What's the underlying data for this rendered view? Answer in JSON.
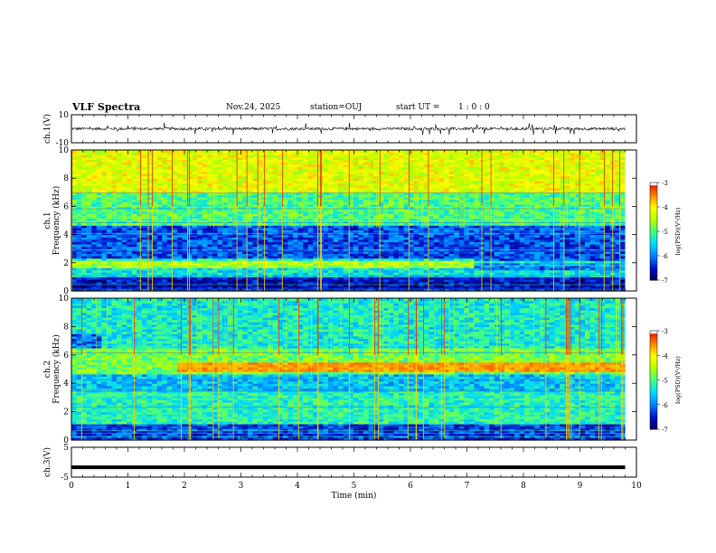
{
  "header": {
    "title": "VLF Spectra",
    "date": "Nov.24, 2025",
    "station": "station=OUJ",
    "start_label": "start  UT =",
    "start_time": "1 : 0 : 0"
  },
  "chart_data": [
    {
      "type": "line",
      "panel": "ch1-waveform",
      "ylabel": "ch.1(V)",
      "ylim": [
        -10,
        10
      ],
      "y_ticks": [
        "10",
        "-10"
      ],
      "series": [
        {
          "baseline": 0,
          "spread": 1.0,
          "spikes_up_to": 4.5
        }
      ],
      "color": "#000000"
    },
    {
      "type": "heatmap",
      "panel": "ch1-spectrogram",
      "ylabel": "ch.1",
      "ylabel2": "Frequency (kHz)",
      "ylim": [
        0,
        10
      ],
      "y_ticks": [
        "0",
        "2",
        "4",
        "6",
        "8",
        "10"
      ],
      "colorbar": {
        "label": "log(PSD)(V²/Hz)",
        "range": [
          -7,
          -3
        ],
        "ticks": [
          "-3",
          "-4",
          "-5",
          "-6",
          "-7"
        ]
      },
      "bands": [
        {
          "from_khz": 0,
          "to_khz": 1,
          "level": -6.6
        },
        {
          "from_khz": 1,
          "to_khz": 2.2,
          "level": -5.4
        },
        {
          "from_khz": 2.2,
          "to_khz": 4.7,
          "level": -6.2
        },
        {
          "from_khz": 4.7,
          "to_khz": 7,
          "level": -5.0
        },
        {
          "from_khz": 7,
          "to_khz": 10,
          "level": -4.2
        }
      ],
      "feature": {
        "description_khz": 2.0,
        "until_min": 7.1
      }
    },
    {
      "type": "heatmap",
      "panel": "ch2-spectrogram",
      "ylabel": "ch.2",
      "ylabel2": "Frequency (kHz)",
      "ylim": [
        0,
        10
      ],
      "y_ticks": [
        "0",
        "2",
        "4",
        "6",
        "8",
        "10"
      ],
      "colorbar": {
        "label": "log(PSD)(V²/Hz)",
        "range": [
          -7,
          -3
        ],
        "ticks": [
          "-3",
          "-4",
          "-5",
          "-6",
          "-7"
        ]
      },
      "bands": [
        {
          "from_khz": 0,
          "to_khz": 1.2,
          "level": -6.3
        },
        {
          "from_khz": 1.2,
          "to_khz": 3.5,
          "level": -5.2
        },
        {
          "from_khz": 3.5,
          "to_khz": 4.6,
          "level": -5.6
        },
        {
          "from_khz": 4.6,
          "to_khz": 6.5,
          "level": -4.8
        },
        {
          "from_khz": 6.5,
          "to_khz": 10,
          "level": -5.3
        }
      ],
      "feature": {
        "red_band_khz": 5.2,
        "from_min": 1.9
      }
    },
    {
      "type": "line",
      "panel": "ch3-waveform",
      "ylabel": "ch.3(V)",
      "ylim": [
        -5,
        5
      ],
      "y_ticks": [
        "5",
        "-5"
      ],
      "series": [
        {
          "baseline": -1.7
        }
      ],
      "color": "#000000"
    }
  ],
  "x_axis": {
    "label": "Time (min)",
    "range": [
      0,
      10
    ],
    "ticks": [
      "0",
      "1",
      "2",
      "3",
      "4",
      "5",
      "6",
      "7",
      "8",
      "9",
      "10"
    ],
    "data_end_min": 9.8
  },
  "colormap": [
    "#00005a",
    "#0010c8",
    "#0080ff",
    "#00d8ff",
    "#40ff80",
    "#b8ff00",
    "#ffff00",
    "#ff8000",
    "#e00000",
    "#ffffff"
  ]
}
